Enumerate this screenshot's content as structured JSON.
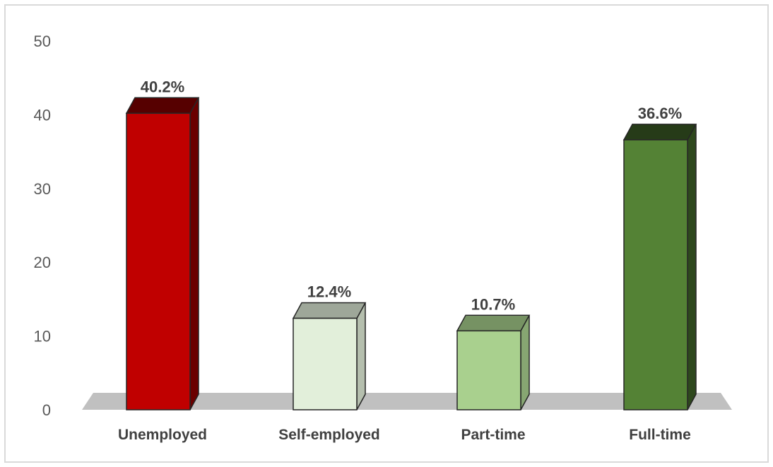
{
  "chart_data": {
    "type": "bar",
    "categories": [
      "Unemployed",
      "Self-employed",
      "Part-time",
      "Full-time"
    ],
    "values": [
      40.2,
      12.4,
      10.7,
      36.6
    ],
    "data_labels": [
      "40.2%",
      "12.4%",
      "10.7%",
      "36.6%"
    ],
    "bar_colors": [
      "#c00000",
      "#e2efda",
      "#a9d08e",
      "#548235"
    ],
    "y_ticks": [
      "0",
      "10",
      "20",
      "30",
      "40",
      "50"
    ],
    "ylim": [
      0,
      50
    ],
    "title": "",
    "xlabel": "",
    "ylabel": "",
    "grid": false,
    "style": "3d-column"
  }
}
